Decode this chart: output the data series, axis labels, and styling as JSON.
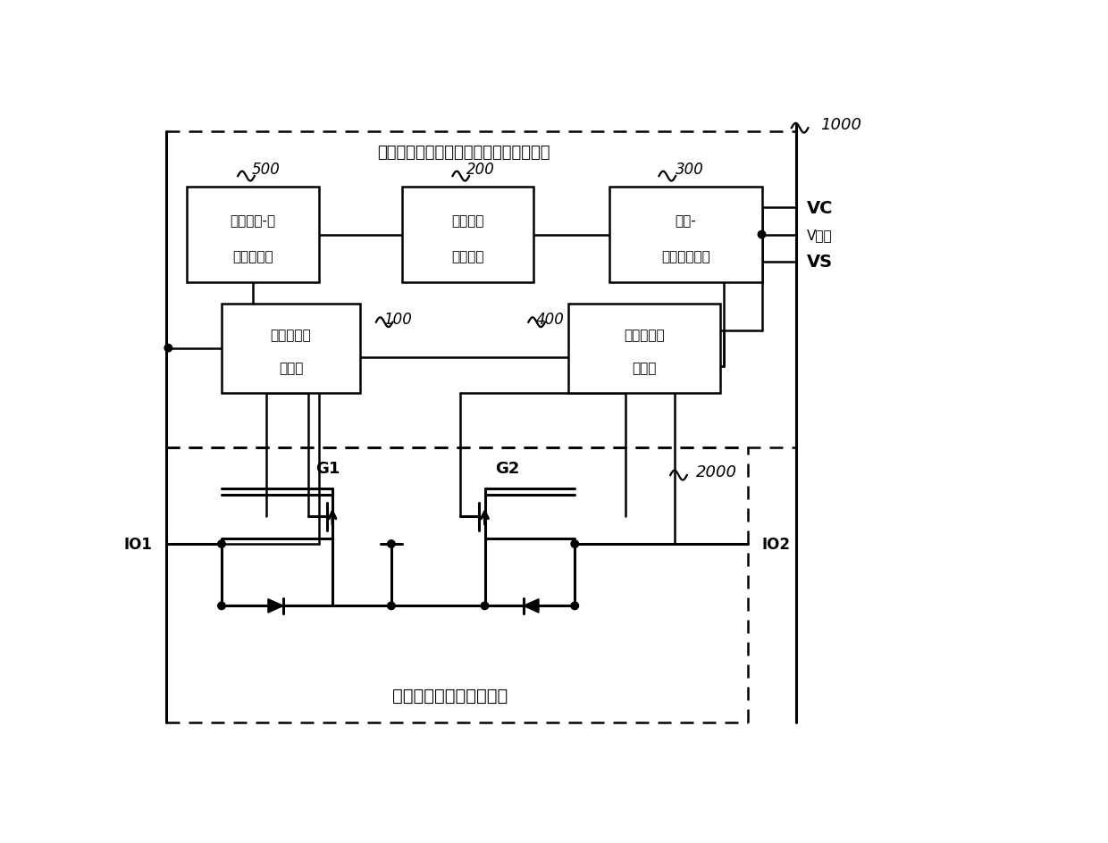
{
  "title": "用于双半导体开关管双向开关的控制电路",
  "bottom_label": "双半导体开关管双向开关",
  "ref_500": "500",
  "ref_200": "200",
  "ref_300": "300",
  "ref_100": "100",
  "ref_400": "400",
  "ref_1000": "1000",
  "ref_2000": "2000",
  "block500_lines": [
    "第一电流-电",
    "压转换电路"
  ],
  "block200_lines": [
    "电流模式",
    "传输电路"
  ],
  "block300_lines": [
    "电压-",
    "电流转换电路"
  ],
  "block100_lines": [
    "第一通断控",
    "制电路"
  ],
  "block400_lines": [
    "第二通断控",
    "制电路"
  ],
  "sig_vc": "VC",
  "sig_vctrl": "V控制",
  "sig_vs": "VS",
  "sig_io1": "IO1",
  "sig_io2": "IO2",
  "sig_g1": "G1",
  "sig_g2": "G2"
}
